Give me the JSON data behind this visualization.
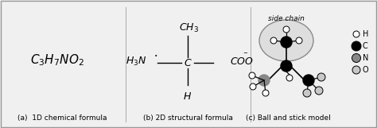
{
  "background_color": "#f0f0f0",
  "border_color": "#999999",
  "title_a": "(a)  1D chemical formula",
  "title_b": "(b) 2D structural formula",
  "title_c": "(c) Ball and stick model",
  "formula_1d": "$\\it{C}_3\\it{H}_7\\it{NO}_2$",
  "legend_labels": [
    "H",
    "C",
    "N",
    "O"
  ],
  "legend_colors": [
    "white",
    "black",
    "#888888",
    "#c8c8c8"
  ],
  "side_chain_label": "side chain"
}
